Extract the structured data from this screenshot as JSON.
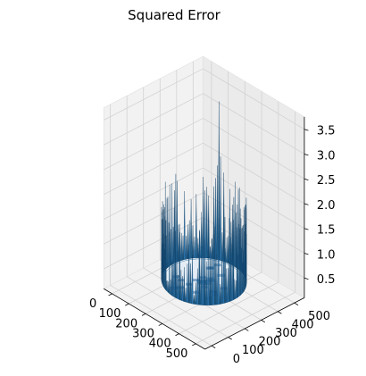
{
  "chart_data": {
    "type": "surface",
    "title": "Squared Error",
    "xlabel": "",
    "ylabel": "",
    "zlabel": "",
    "x_ticks": [
      0,
      100,
      200,
      300,
      400,
      500
    ],
    "y_ticks": [
      0,
      100,
      200,
      300,
      400,
      500
    ],
    "z_ticks": [
      0.5,
      1.0,
      1.5,
      2.0,
      2.5,
      3.0,
      3.5
    ],
    "z_tick_labels": [
      "0.5",
      "1.0",
      "1.5",
      "2.0",
      "2.5",
      "3.0",
      "3.5"
    ],
    "xlim": [
      0,
      512
    ],
    "ylim": [
      0,
      512
    ],
    "zlim": [
      0.1,
      3.6
    ],
    "grid": true,
    "surface_color": "#1f77b4",
    "description_of_values": "Squared error near zero inside and outside an annulus centered at (256, 256); error concentrated on a ring of radius ~180 with spikes mostly 0.8-1.7, peak about 3.2 near the back of the ring.",
    "ring": {
      "center": [
        256,
        256
      ],
      "radius": 180,
      "baseline_error": 0.05,
      "typical_spike_range": [
        0.4,
        1.8
      ],
      "peak_error": 3.2
    }
  }
}
